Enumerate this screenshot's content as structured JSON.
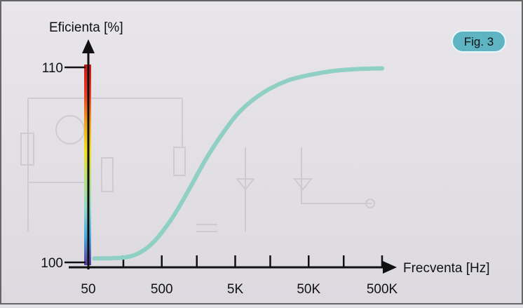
{
  "figure_label": "Fig. 3",
  "chart_data": {
    "type": "line",
    "title": "",
    "ylabel": "Eficienta [%]",
    "xlabel": "Frecventa [Hz]",
    "x_scale": "log",
    "grid": false,
    "y_ticks": [
      {
        "value": 100,
        "label": "100"
      },
      {
        "value": 110,
        "label": "110"
      }
    ],
    "ylim": [
      100,
      110
    ],
    "x_tick_labels": [
      {
        "value": 50,
        "label": "50"
      },
      {
        "value": 500,
        "label": "500"
      },
      {
        "value": 5000,
        "label": "5K"
      },
      {
        "value": 50000,
        "label": "50K"
      },
      {
        "value": 500000,
        "label": "500K"
      }
    ],
    "xlim": [
      50,
      500000
    ],
    "series": [
      {
        "name": "",
        "color": "#8fcfc4",
        "x": [
          60,
          150,
          250,
          400,
          700,
          1200,
          2000,
          3500,
          6000,
          12000,
          25000,
          50000,
          100000,
          200000,
          500000
        ],
        "y": [
          100.2,
          100.25,
          100.5,
          101.1,
          102.3,
          103.8,
          105.3,
          106.7,
          107.8,
          108.7,
          109.3,
          109.6,
          109.8,
          109.9,
          109.95
        ]
      }
    ],
    "axis_color_scale": [
      "#5b3fa0",
      "#4aa8e0",
      "#8fd8c8",
      "#b8e080",
      "#f0e020",
      "#f0a020",
      "#e83a28",
      "#c81818"
    ]
  }
}
